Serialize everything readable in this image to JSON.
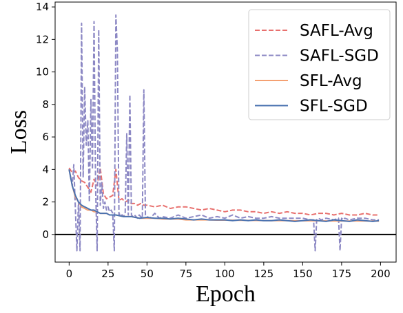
{
  "chart_data": {
    "type": "line",
    "xlabel": "Epoch",
    "ylabel": "Loss",
    "xlim": [
      -9,
      210
    ],
    "ylim": [
      -1.7,
      14.3
    ],
    "xticks": [
      0,
      25,
      50,
      75,
      100,
      125,
      150,
      175,
      200
    ],
    "yticks": [
      0,
      2,
      4,
      6,
      8,
      10,
      12,
      14
    ],
    "grid": false,
    "reference_line_y": 0,
    "legend_position": "top-right",
    "series": [
      {
        "name": "SAFL-Avg",
        "style": "dashed",
        "color": "#e8706e",
        "x": [
          0,
          2,
          4,
          6,
          8,
          10,
          12,
          14,
          16,
          18,
          20,
          22,
          24,
          26,
          28,
          30,
          32,
          34,
          36,
          38,
          40,
          42,
          44,
          46,
          48,
          50,
          55,
          60,
          65,
          70,
          75,
          80,
          85,
          90,
          95,
          100,
          105,
          110,
          115,
          120,
          125,
          130,
          135,
          140,
          145,
          150,
          155,
          160,
          165,
          170,
          175,
          180,
          185,
          190,
          195,
          199
        ],
        "values": [
          4.1,
          3.8,
          3.9,
          3.5,
          3.3,
          3.2,
          2.9,
          2.6,
          3.4,
          3.0,
          4.1,
          2.5,
          2.2,
          2.3,
          2.4,
          4.0,
          2.1,
          2.2,
          2.0,
          2.1,
          1.9,
          1.9,
          1.8,
          1.9,
          1.8,
          1.8,
          1.7,
          1.8,
          1.6,
          1.7,
          1.7,
          1.6,
          1.5,
          1.6,
          1.5,
          1.4,
          1.5,
          1.5,
          1.4,
          1.4,
          1.3,
          1.4,
          1.3,
          1.4,
          1.3,
          1.3,
          1.2,
          1.3,
          1.3,
          1.2,
          1.3,
          1.2,
          1.2,
          1.3,
          1.2,
          1.2
        ]
      },
      {
        "name": "SAFL-SGD",
        "style": "dashed",
        "color": "#8c88c4",
        "x": [
          0,
          2,
          3,
          5,
          6,
          7,
          8,
          9,
          10,
          11,
          12,
          13,
          14,
          15,
          16,
          17,
          18,
          19,
          20,
          21,
          22,
          23,
          24,
          25,
          26,
          27,
          28,
          29,
          30,
          31,
          32,
          33,
          34,
          35,
          36,
          37,
          38,
          39,
          40,
          41,
          42,
          43,
          44,
          45,
          46,
          47,
          48,
          49,
          50,
          52,
          55,
          58,
          60,
          65,
          70,
          75,
          80,
          85,
          90,
          95,
          100,
          105,
          110,
          115,
          120,
          125,
          130,
          135,
          140,
          145,
          150,
          155,
          157,
          158,
          159,
          160,
          162,
          165,
          170,
          173,
          174,
          175,
          176,
          177,
          180,
          185,
          190,
          195,
          199
        ],
        "values": [
          4.0,
          3.0,
          4.3,
          -1.0,
          2.0,
          -1.0,
          13.0,
          3.5,
          9.1,
          5.5,
          7.0,
          2.0,
          8.3,
          4.0,
          13.1,
          2.8,
          -1.0,
          12.6,
          1.8,
          3.2,
          1.6,
          2.0,
          1.5,
          1.7,
          1.4,
          1.5,
          1.3,
          -1.0,
          13.5,
          11.3,
          1.2,
          1.3,
          1.2,
          1.1,
          1.3,
          6.2,
          1.2,
          8.6,
          1.2,
          1.1,
          1.2,
          1.1,
          1.0,
          1.2,
          1.1,
          1.0,
          8.9,
          1.2,
          1.1,
          1.0,
          1.3,
          1.0,
          1.1,
          1.0,
          1.2,
          1.0,
          1.1,
          1.2,
          1.0,
          1.1,
          1.0,
          1.2,
          1.0,
          1.1,
          1.0,
          1.0,
          1.1,
          1.0,
          1.0,
          1.0,
          1.0,
          0.9,
          0.9,
          -1.0,
          0.9,
          1.0,
          0.9,
          1.0,
          0.9,
          1.0,
          -1.0,
          1.0,
          0.9,
          1.0,
          0.9,
          1.0,
          1.0,
          0.9,
          0.9
        ]
      },
      {
        "name": "SFL-Avg",
        "style": "solid",
        "color": "#f4a072",
        "x": [
          0,
          2,
          4,
          6,
          8,
          10,
          12,
          14,
          16,
          18,
          20,
          22,
          24,
          26,
          28,
          30,
          35,
          40,
          45,
          50,
          55,
          60,
          65,
          70,
          75,
          80,
          85,
          90,
          95,
          100,
          110,
          120,
          130,
          140,
          150,
          160,
          170,
          180,
          190,
          199
        ],
        "values": [
          4.0,
          3.0,
          2.3,
          2.0,
          1.7,
          1.6,
          1.5,
          1.5,
          1.4,
          1.4,
          1.3,
          1.3,
          1.3,
          1.2,
          1.2,
          1.2,
          1.1,
          1.1,
          1.0,
          1.0,
          1.0,
          0.95,
          0.95,
          0.95,
          0.9,
          0.9,
          0.9,
          0.9,
          0.88,
          0.88,
          0.87,
          0.86,
          0.85,
          0.85,
          0.84,
          0.84,
          0.83,
          0.83,
          0.83,
          0.82
        ]
      },
      {
        "name": "SFL-SGD",
        "style": "solid",
        "color": "#4a72b0",
        "x": [
          0,
          2,
          4,
          6,
          8,
          10,
          12,
          14,
          16,
          18,
          20,
          22,
          24,
          26,
          28,
          30,
          35,
          40,
          45,
          50,
          55,
          60,
          65,
          70,
          75,
          80,
          85,
          90,
          95,
          100,
          105,
          110,
          115,
          120,
          125,
          130,
          135,
          140,
          145,
          150,
          155,
          160,
          165,
          170,
          175,
          180,
          185,
          190,
          195,
          199
        ],
        "values": [
          4.0,
          3.0,
          2.4,
          2.0,
          1.8,
          1.7,
          1.6,
          1.5,
          1.5,
          1.4,
          1.3,
          1.3,
          1.3,
          1.2,
          1.2,
          1.2,
          1.1,
          1.1,
          1.0,
          1.05,
          1.0,
          1.0,
          0.95,
          1.0,
          0.95,
          0.9,
          0.95,
          0.9,
          0.9,
          0.9,
          0.85,
          0.9,
          0.85,
          0.9,
          0.85,
          0.85,
          0.9,
          0.85,
          0.8,
          0.85,
          0.9,
          0.85,
          0.8,
          0.9,
          0.85,
          0.8,
          0.9,
          0.85,
          0.8,
          0.85
        ]
      }
    ]
  }
}
